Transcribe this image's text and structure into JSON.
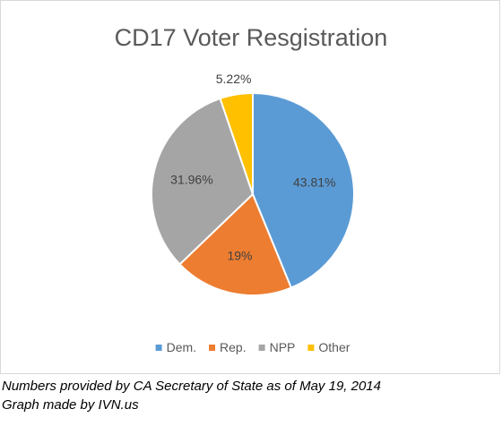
{
  "chart_data": {
    "type": "pie",
    "title": "CD17 Voter Resgistration",
    "categories": [
      "Dem.",
      "Rep.",
      "NPP",
      "Other"
    ],
    "values": [
      43.81,
      19,
      31.96,
      5.22
    ],
    "labels": [
      "43.81%",
      "19%",
      "31.96%",
      "5.22%"
    ],
    "colors": [
      "#5b9bd5",
      "#ed7d31",
      "#a5a5a5",
      "#ffc000"
    ],
    "start_angle": "12 o'clock, clockwise",
    "legend": "bottom"
  },
  "caption": {
    "line1": "Numbers provided by CA Secretary of State as of May 19, 2014",
    "line2": "Graph made by IVN.us"
  }
}
